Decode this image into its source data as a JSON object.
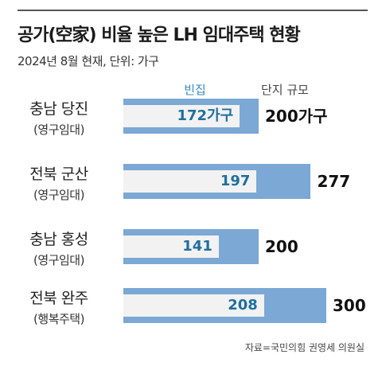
{
  "title": "공가(空家) 비율 높은 LH 임대주택 현황",
  "subtitle": "2024년 8월 현재, 단위: 가구",
  "source": "자료=국민의힘 권영세 의원실",
  "colors": {
    "total_bar": "#7ba8d4",
    "vacant_bar": "#f2f2f2",
    "vacant_text": "#1f6f9f",
    "legend_vacant": "#3a8ac4"
  },
  "chart_data": {
    "type": "bar",
    "orientation": "horizontal",
    "title": "공가(空家) 비율 높은 LH 임대주택 현황",
    "subtitle": "2024년 8월 현재, 단위: 가구",
    "legend": [
      "빈집",
      "단지 규모"
    ],
    "categories": [
      {
        "name": "충남 당진",
        "type": "(영구임대)"
      },
      {
        "name": "전북 군산",
        "type": "(영구임대)"
      },
      {
        "name": "충남 홍성",
        "type": "(영구임대)"
      },
      {
        "name": "전북 완주",
        "type": "(행복주택)"
      }
    ],
    "series": [
      {
        "name": "빈집",
        "values": [
          172,
          197,
          141,
          208
        ],
        "labels": [
          "172가구",
          "197",
          "141",
          "208"
        ]
      },
      {
        "name": "단지 규모",
        "values": [
          200,
          277,
          200,
          300
        ],
        "labels": [
          "200가구",
          "277",
          "200",
          "300"
        ]
      }
    ]
  }
}
